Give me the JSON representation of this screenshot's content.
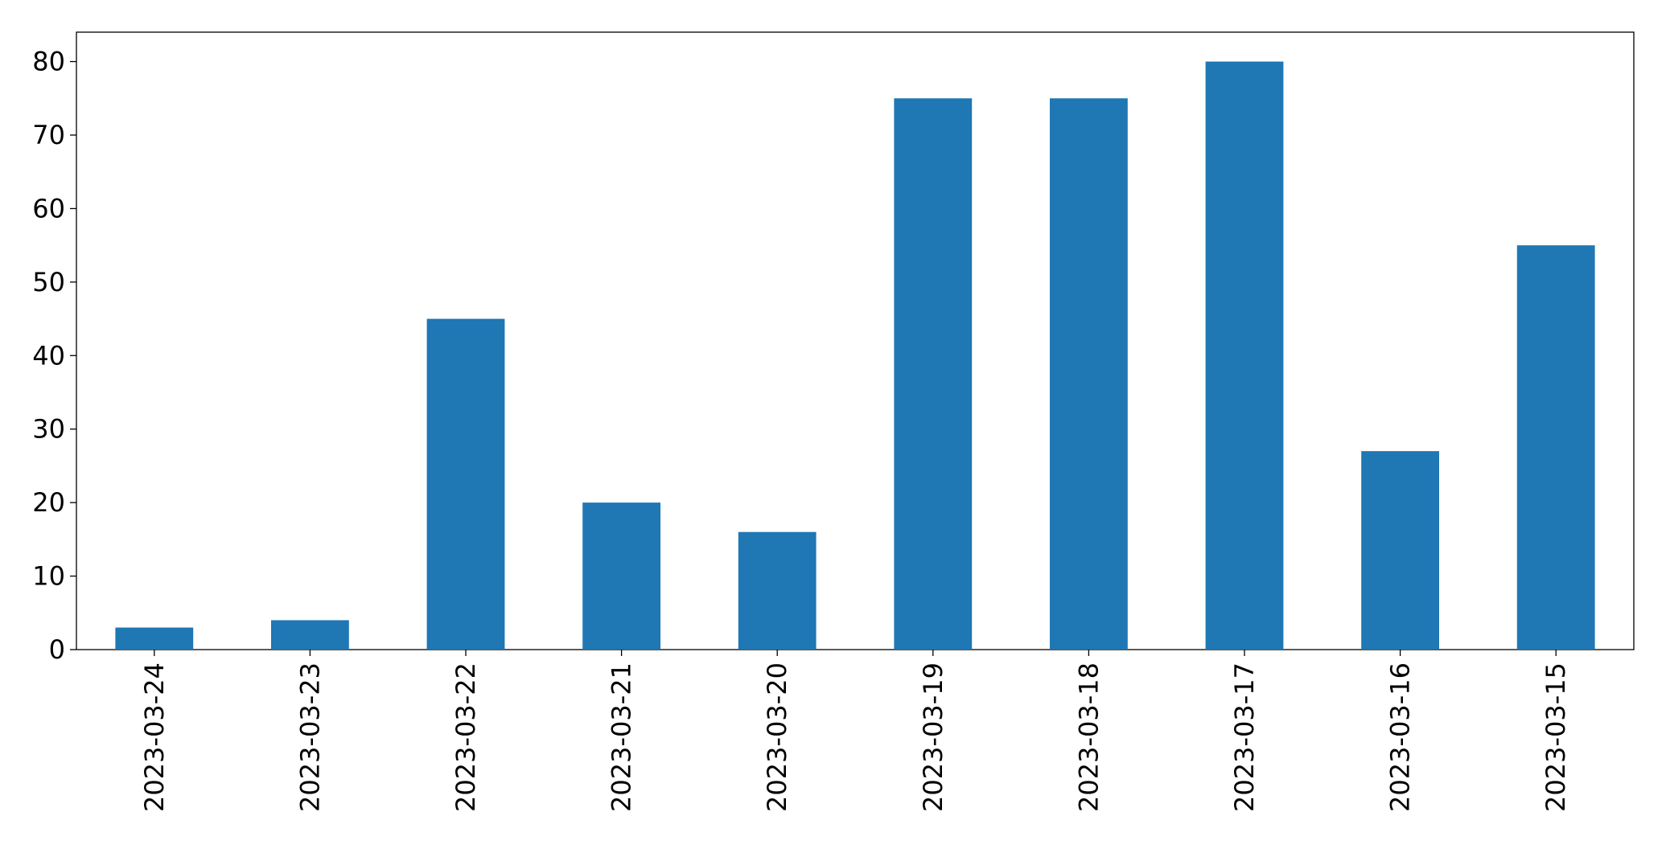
{
  "chart_data": {
    "type": "bar",
    "categories": [
      "2023-03-24",
      "2023-03-23",
      "2023-03-22",
      "2023-03-21",
      "2023-03-20",
      "2023-03-19",
      "2023-03-18",
      "2023-03-17",
      "2023-03-16",
      "2023-03-15"
    ],
    "values": [
      3,
      4,
      45,
      20,
      16,
      75,
      75,
      80,
      27,
      55
    ],
    "color": "#1f77b4",
    "ylim": [
      0,
      84
    ],
    "yticks": [
      0,
      10,
      20,
      30,
      40,
      50,
      60,
      70,
      80
    ],
    "grid": false
  }
}
